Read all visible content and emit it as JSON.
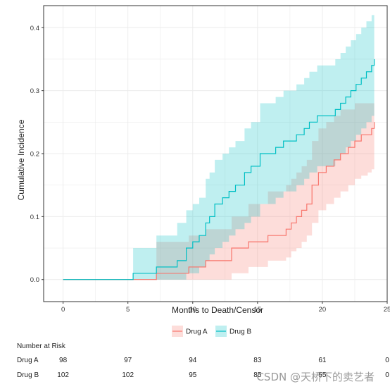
{
  "chart_data": {
    "type": "line",
    "title": "",
    "xlabel": "Months to Death/Censor",
    "ylabel": "Cumulative Incidence",
    "xlim": [
      -1.5,
      25
    ],
    "ylim": [
      -0.035,
      0.435
    ],
    "xticks": [
      0,
      5,
      10,
      15,
      20,
      25
    ],
    "yticks": [
      0.0,
      0.1,
      0.2,
      0.3,
      0.4
    ],
    "ytick_labels": [
      "0.0",
      "0.1",
      "0.2",
      "0.3",
      "0.4"
    ],
    "grid": true,
    "legend_position": "bottom",
    "series": [
      {
        "name": "Drug A",
        "color": "#f8766d",
        "fill": "#fbd4d0",
        "step_x": [
          0,
          7.2,
          8.5,
          9.7,
          11.0,
          12.3,
          13.0,
          14.3,
          15.8,
          16.5,
          17.2,
          17.6,
          18.0,
          18.4,
          18.8,
          19.2,
          19.7,
          20.3,
          20.9,
          21.4,
          22.0,
          22.5,
          23.0,
          23.5,
          23.8,
          24.0
        ],
        "step_y": [
          0.0,
          0.01,
          0.01,
          0.02,
          0.03,
          0.03,
          0.05,
          0.06,
          0.07,
          0.07,
          0.08,
          0.09,
          0.1,
          0.11,
          0.12,
          0.15,
          0.17,
          0.18,
          0.19,
          0.2,
          0.21,
          0.22,
          0.23,
          0.23,
          0.24,
          0.25
        ],
        "lower": [
          0.0,
          0.0,
          0.0,
          0.0,
          0.0,
          0.0,
          0.01,
          0.02,
          0.03,
          0.03,
          0.035,
          0.045,
          0.05,
          0.06,
          0.07,
          0.09,
          0.11,
          0.12,
          0.13,
          0.14,
          0.15,
          0.16,
          0.165,
          0.17,
          0.175,
          0.18
        ],
        "upper": [
          0.0,
          0.06,
          0.06,
          0.07,
          0.08,
          0.08,
          0.1,
          0.12,
          0.14,
          0.14,
          0.15,
          0.16,
          0.17,
          0.18,
          0.19,
          0.22,
          0.24,
          0.25,
          0.26,
          0.27,
          0.27,
          0.28,
          0.28,
          0.28,
          0.28,
          0.28
        ]
      },
      {
        "name": "Drug B",
        "color": "#00bfc4",
        "fill": "#bfeeef",
        "step_x": [
          0,
          5.4,
          7.2,
          8.8,
          9.5,
          10.0,
          10.5,
          11.0,
          11.3,
          11.7,
          12.3,
          12.8,
          13.3,
          14.0,
          14.5,
          15.2,
          15.8,
          16.4,
          17.0,
          18.0,
          18.6,
          19.0,
          19.6,
          20.5,
          21.0,
          21.4,
          21.8,
          22.2,
          22.6,
          23.0,
          23.4,
          23.8,
          24.0
        ],
        "step_y": [
          0.0,
          0.01,
          0.02,
          0.03,
          0.05,
          0.06,
          0.07,
          0.09,
          0.1,
          0.12,
          0.13,
          0.14,
          0.15,
          0.17,
          0.18,
          0.2,
          0.2,
          0.21,
          0.22,
          0.23,
          0.24,
          0.25,
          0.26,
          0.26,
          0.27,
          0.28,
          0.29,
          0.3,
          0.31,
          0.32,
          0.33,
          0.34,
          0.35
        ],
        "lower": [
          0.0,
          0.0,
          0.0,
          0.0,
          0.01,
          0.01,
          0.02,
          0.03,
          0.04,
          0.05,
          0.06,
          0.07,
          0.08,
          0.09,
          0.1,
          0.12,
          0.12,
          0.13,
          0.14,
          0.15,
          0.16,
          0.17,
          0.18,
          0.18,
          0.19,
          0.2,
          0.21,
          0.22,
          0.23,
          0.24,
          0.25,
          0.26,
          0.27
        ],
        "upper": [
          0.0,
          0.05,
          0.07,
          0.09,
          0.11,
          0.12,
          0.13,
          0.16,
          0.17,
          0.19,
          0.2,
          0.21,
          0.22,
          0.24,
          0.25,
          0.28,
          0.28,
          0.29,
          0.3,
          0.31,
          0.32,
          0.33,
          0.34,
          0.34,
          0.35,
          0.36,
          0.37,
          0.38,
          0.39,
          0.4,
          0.41,
          0.42,
          0.42
        ]
      }
    ]
  },
  "risk_table": {
    "title": "Number at Risk",
    "time_points": [
      0,
      5,
      10,
      15,
      20,
      25
    ],
    "rows": [
      {
        "label": "Drug A",
        "values": [
          "98",
          "97",
          "94",
          "83",
          "61",
          "0"
        ]
      },
      {
        "label": "Drug B",
        "values": [
          "102",
          "102",
          "95",
          "85",
          "55",
          "0"
        ]
      }
    ]
  },
  "watermark": "CSDN @天桥下的卖艺者"
}
